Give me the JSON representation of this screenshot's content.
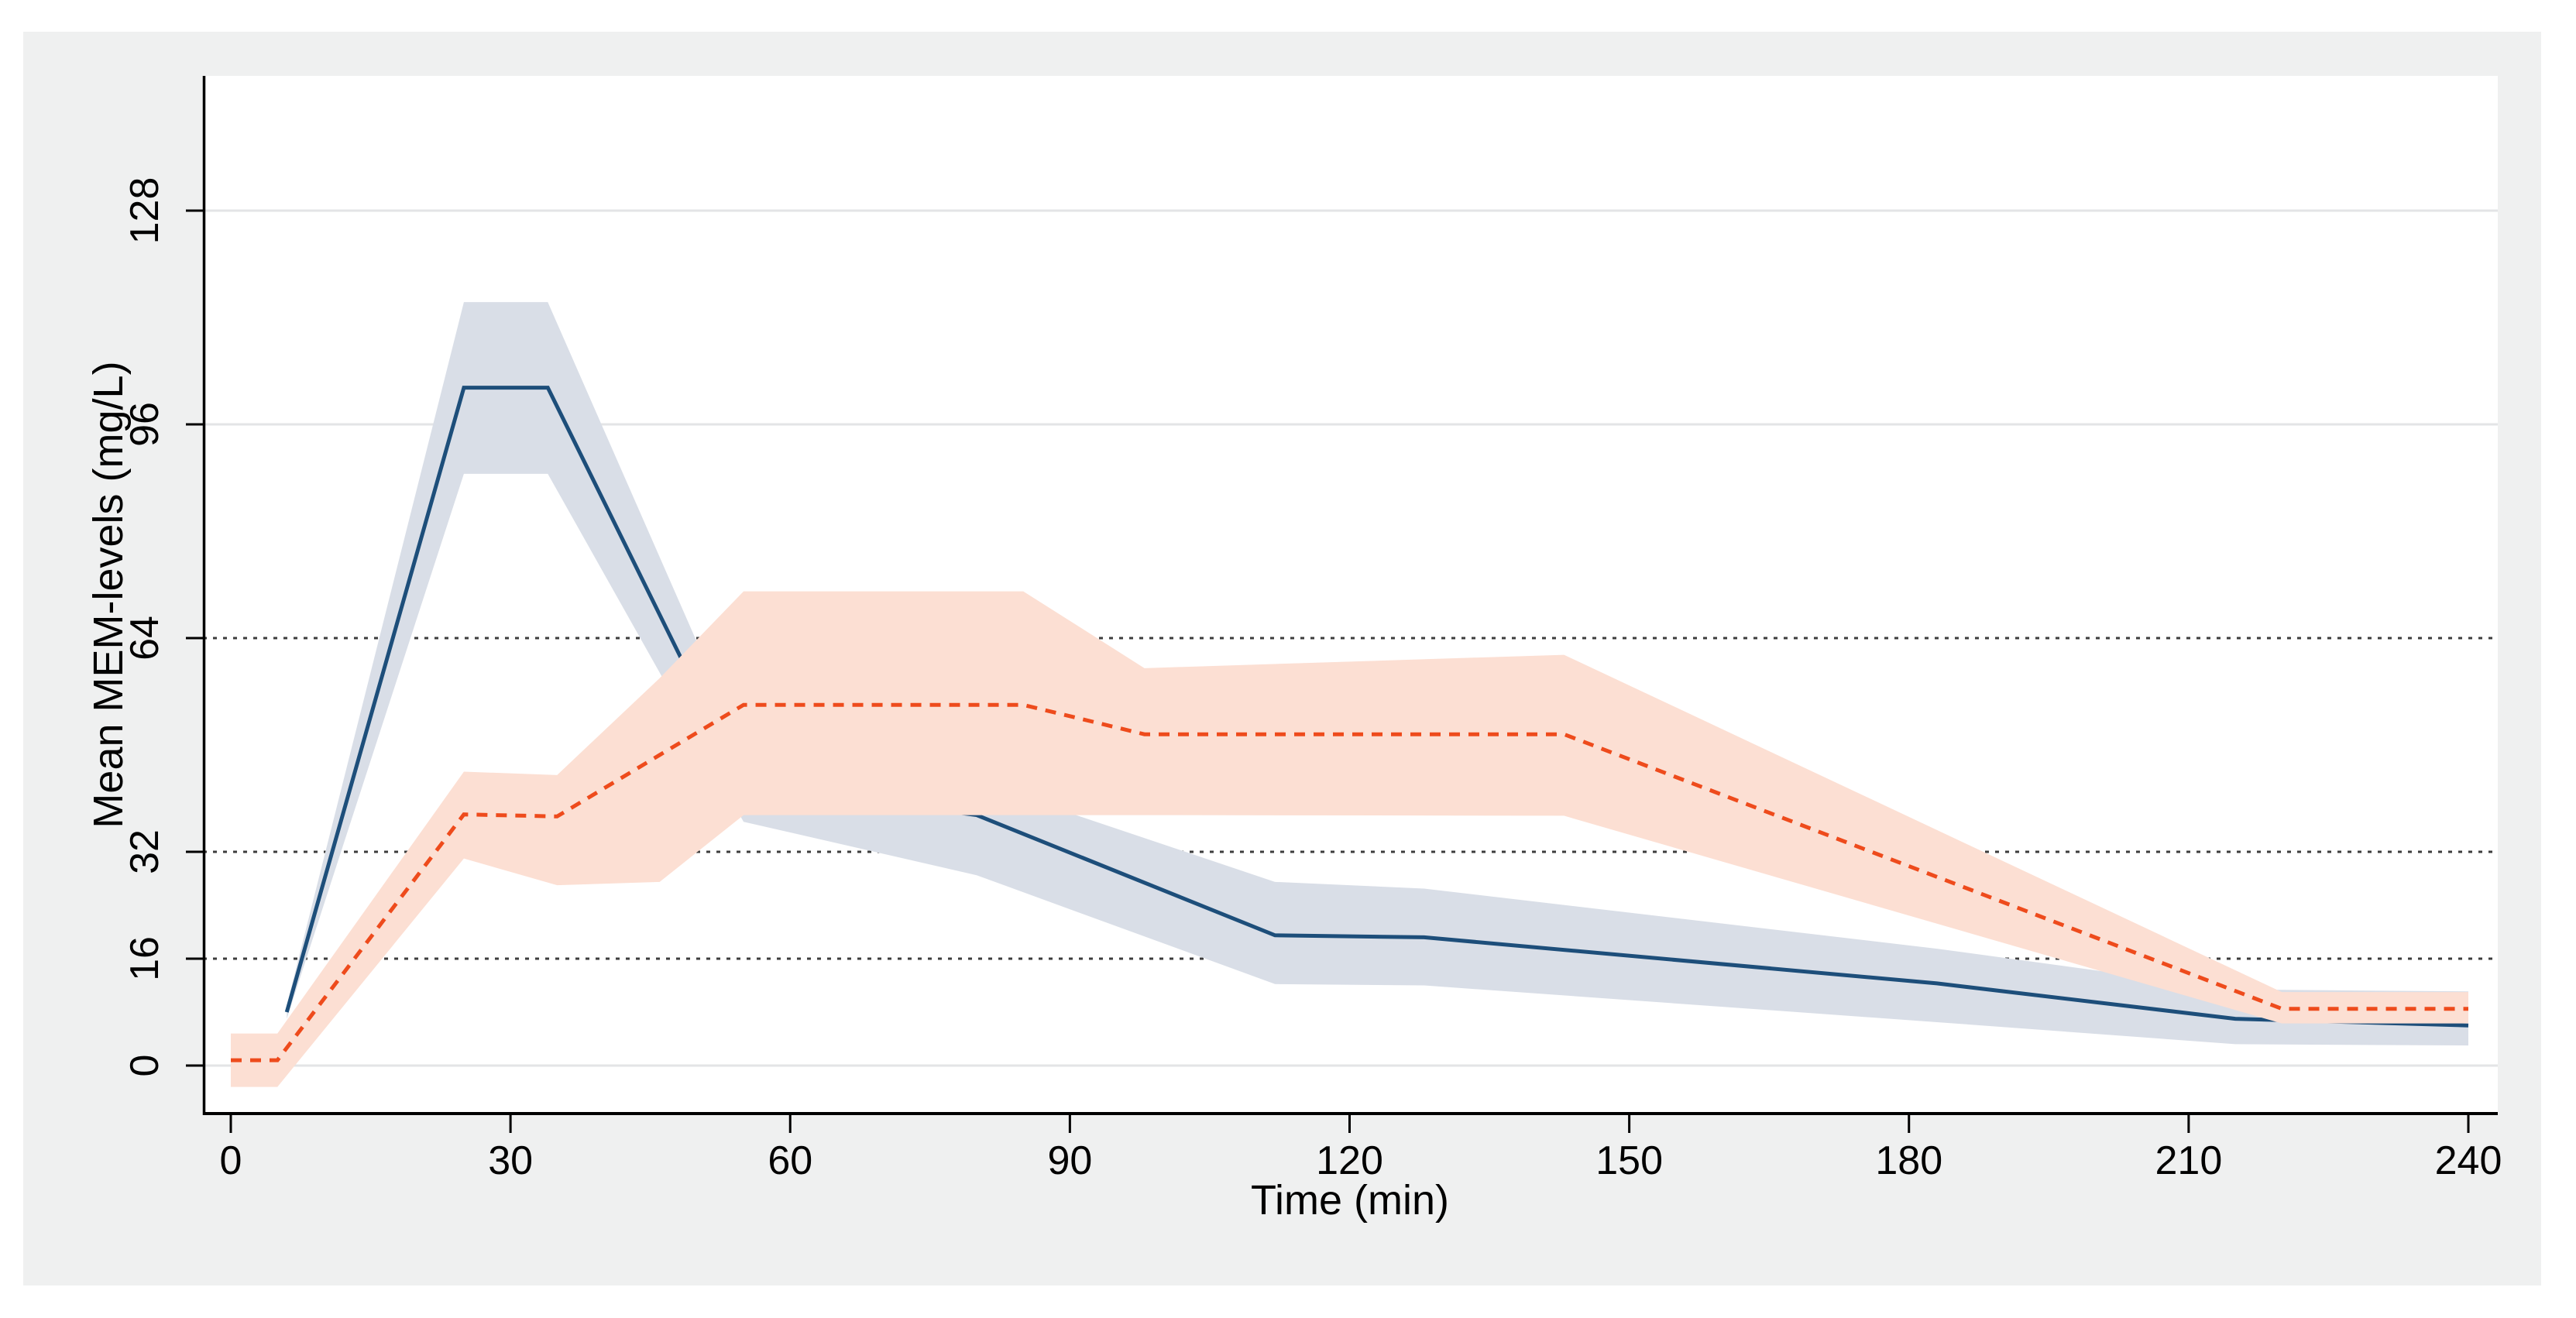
{
  "chart_data": {
    "type": "line",
    "title": "",
    "xlabel": "Time (min)",
    "ylabel": "Mean MEM-levels (mg/L)",
    "x_ticks": [
      0,
      30,
      60,
      90,
      120,
      150,
      180,
      210,
      240
    ],
    "y_ticks": [
      0,
      16,
      32,
      64,
      96,
      128
    ],
    "xlim": [
      -3,
      243.3
    ],
    "ylim": [
      -7.2,
      148.2
    ],
    "grid": "on",
    "grid_solid_at": [
      0,
      96,
      128
    ],
    "reference_dotted_at": [
      16,
      32,
      64
    ],
    "legend_position": "none",
    "series": [
      {
        "name": "navy-solid",
        "line_style": "solid",
        "color": "#1d4e7a",
        "band_color": "#d9dee7",
        "points": [
          {
            "t": 6,
            "mean": 8.0,
            "lo": 7.0,
            "hi": 9.0
          },
          {
            "t": 25,
            "mean": 101.5,
            "lo": 88.6,
            "hi": 114.3
          },
          {
            "t": 34,
            "mean": 101.5,
            "lo": 88.6,
            "hi": 114.3
          },
          {
            "t": 55,
            "mean": 42.0,
            "lo": 36.5,
            "hi": 47.5
          },
          {
            "t": 80,
            "mean": 37.5,
            "lo": 28.5,
            "hi": 42.5
          },
          {
            "t": 112,
            "mean": 19.5,
            "lo": 12.2,
            "hi": 27.5
          },
          {
            "t": 128,
            "mean": 19.2,
            "lo": 12.0,
            "hi": 26.5
          },
          {
            "t": 183,
            "mean": 12.3,
            "lo": 6.5,
            "hi": 17.5
          },
          {
            "t": 215,
            "mean": 7.0,
            "lo": 3.2,
            "hi": 11.4
          },
          {
            "t": 240,
            "mean": 6.0,
            "lo": 3.0,
            "hi": 11.1
          }
        ]
      },
      {
        "name": "red-dashed",
        "line_style": "dashed",
        "color": "#ee4b1c",
        "band_color": "#fcdfd3",
        "points": [
          {
            "t": 0,
            "mean": 0.8,
            "lo": -3.2,
            "hi": 4.8
          },
          {
            "t": 5,
            "mean": 0.8,
            "lo": -3.2,
            "hi": 4.8
          },
          {
            "t": 25,
            "mean": 37.6,
            "lo": 31.0,
            "hi": 44.0
          },
          {
            "t": 35,
            "mean": 37.3,
            "lo": 27.0,
            "hi": 43.5
          },
          {
            "t": 46,
            "mean": 46.5,
            "lo": 27.5,
            "hi": 58.0
          },
          {
            "t": 55,
            "mean": 54.0,
            "lo": 37.5,
            "hi": 71.0
          },
          {
            "t": 85,
            "mean": 54.0,
            "lo": 37.5,
            "hi": 71.0
          },
          {
            "t": 98,
            "mean": 49.6,
            "lo": 37.5,
            "hi": 59.5
          },
          {
            "t": 143,
            "mean": 49.6,
            "lo": 37.4,
            "hi": 61.5
          },
          {
            "t": 220,
            "mean": 8.5,
            "lo": 6.3,
            "hi": 11.0
          },
          {
            "t": 240,
            "mean": 8.5,
            "lo": 6.3,
            "hi": 11.0
          }
        ]
      }
    ]
  },
  "colors": {
    "page_bg": "#ffffff",
    "canvas_bg": "#eff0f0",
    "plot_bg": "#ffffff",
    "axis": "#000000",
    "grid": "#e3e4e6",
    "reference_line": "#3d3d3d",
    "tick_text": "#000000"
  }
}
